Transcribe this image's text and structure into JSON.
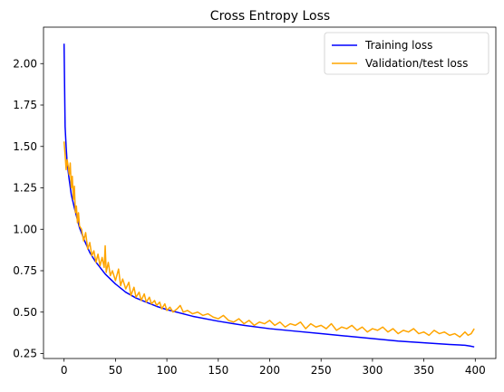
{
  "chart_data": {
    "type": "line",
    "title": "Cross Entropy Loss",
    "xlabel": "",
    "ylabel": "",
    "xlim": [
      -20,
      420
    ],
    "ylim": [
      0.22,
      2.22
    ],
    "xticks": [
      0,
      50,
      100,
      150,
      200,
      250,
      300,
      350,
      400
    ],
    "yticks": [
      0.25,
      0.5,
      0.75,
      1.0,
      1.25,
      1.5,
      1.75,
      2.0
    ],
    "ytick_labels": [
      "0.25",
      "0.50",
      "0.75",
      "1.00",
      "1.25",
      "1.50",
      "1.75",
      "2.00"
    ],
    "grid": false,
    "legend_position": "top-right",
    "series": [
      {
        "name": "Training loss",
        "color": "#0000ff",
        "x": [
          0,
          1,
          2,
          3,
          5,
          7,
          10,
          15,
          20,
          25,
          30,
          40,
          50,
          60,
          70,
          80,
          90,
          100,
          125,
          150,
          175,
          200,
          225,
          250,
          275,
          300,
          325,
          350,
          375,
          390,
          395,
          399
        ],
        "y": [
          2.12,
          1.62,
          1.5,
          1.4,
          1.3,
          1.21,
          1.13,
          1.01,
          0.93,
          0.86,
          0.81,
          0.73,
          0.67,
          0.62,
          0.585,
          0.56,
          0.535,
          0.515,
          0.475,
          0.445,
          0.42,
          0.4,
          0.385,
          0.37,
          0.355,
          0.34,
          0.325,
          0.315,
          0.305,
          0.3,
          0.295,
          0.29
        ]
      },
      {
        "name": "Validation/test loss",
        "color": "#ffa500",
        "x": [
          0,
          1,
          2,
          3,
          4,
          5,
          6,
          7,
          8,
          9,
          10,
          11,
          12,
          13,
          14,
          15,
          17,
          19,
          21,
          23,
          25,
          27,
          29,
          31,
          33,
          35,
          37,
          39,
          40,
          41,
          43,
          45,
          47,
          50,
          53,
          55,
          57,
          60,
          63,
          65,
          68,
          70,
          73,
          75,
          78,
          80,
          83,
          85,
          88,
          90,
          93,
          95,
          98,
          100,
          103,
          106,
          110,
          113,
          116,
          120,
          125,
          130,
          135,
          140,
          145,
          150,
          155,
          160,
          165,
          170,
          175,
          180,
          185,
          190,
          195,
          200,
          205,
          210,
          215,
          220,
          225,
          230,
          235,
          240,
          245,
          250,
          255,
          260,
          265,
          270,
          275,
          280,
          285,
          290,
          295,
          300,
          305,
          310,
          315,
          320,
          325,
          330,
          335,
          340,
          345,
          350,
          355,
          360,
          365,
          370,
          375,
          380,
          385,
          390,
          393,
          396,
          399
        ],
        "y": [
          1.53,
          1.45,
          1.36,
          1.42,
          1.38,
          1.33,
          1.4,
          1.25,
          1.32,
          1.18,
          1.26,
          1.1,
          1.14,
          1.04,
          1.1,
          1.02,
          1.0,
          0.93,
          0.98,
          0.88,
          0.92,
          0.84,
          0.87,
          0.8,
          0.85,
          0.78,
          0.83,
          0.77,
          0.9,
          0.74,
          0.8,
          0.72,
          0.75,
          0.69,
          0.76,
          0.66,
          0.7,
          0.64,
          0.68,
          0.6,
          0.65,
          0.59,
          0.62,
          0.57,
          0.61,
          0.56,
          0.59,
          0.55,
          0.57,
          0.54,
          0.56,
          0.52,
          0.55,
          0.51,
          0.53,
          0.5,
          0.52,
          0.54,
          0.5,
          0.51,
          0.49,
          0.5,
          0.48,
          0.49,
          0.47,
          0.46,
          0.48,
          0.45,
          0.44,
          0.46,
          0.43,
          0.45,
          0.42,
          0.44,
          0.43,
          0.45,
          0.42,
          0.44,
          0.41,
          0.43,
          0.42,
          0.44,
          0.4,
          0.43,
          0.41,
          0.42,
          0.4,
          0.43,
          0.39,
          0.41,
          0.4,
          0.42,
          0.39,
          0.41,
          0.38,
          0.4,
          0.39,
          0.41,
          0.38,
          0.4,
          0.37,
          0.39,
          0.38,
          0.4,
          0.37,
          0.38,
          0.36,
          0.39,
          0.37,
          0.38,
          0.36,
          0.37,
          0.35,
          0.38,
          0.36,
          0.37,
          0.4
        ]
      }
    ]
  }
}
